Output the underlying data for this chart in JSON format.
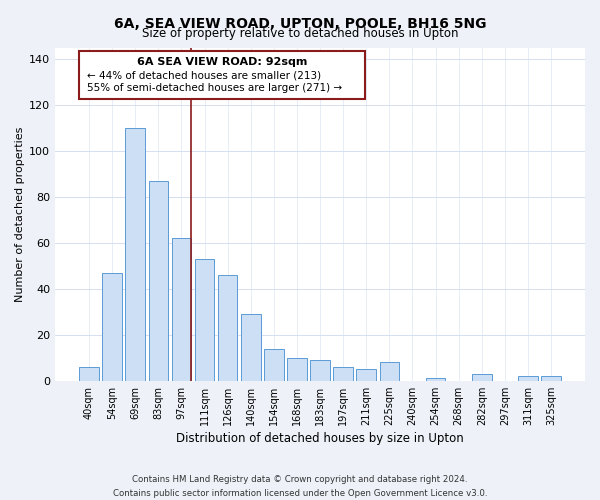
{
  "title": "6A, SEA VIEW ROAD, UPTON, POOLE, BH16 5NG",
  "subtitle": "Size of property relative to detached houses in Upton",
  "xlabel": "Distribution of detached houses by size in Upton",
  "ylabel": "Number of detached properties",
  "bar_labels": [
    "40sqm",
    "54sqm",
    "69sqm",
    "83sqm",
    "97sqm",
    "111sqm",
    "126sqm",
    "140sqm",
    "154sqm",
    "168sqm",
    "183sqm",
    "197sqm",
    "211sqm",
    "225sqm",
    "240sqm",
    "254sqm",
    "268sqm",
    "282sqm",
    "297sqm",
    "311sqm",
    "325sqm"
  ],
  "bar_values": [
    6,
    47,
    110,
    87,
    62,
    53,
    46,
    29,
    14,
    10,
    9,
    6,
    5,
    8,
    0,
    1,
    0,
    3,
    0,
    2,
    2
  ],
  "bar_color": "#ccdff5",
  "bar_edge_color": "#5b9bd5",
  "marker_index": 4,
  "marker_color": "#8b1a1a",
  "ylim": [
    0,
    145
  ],
  "yticks": [
    0,
    20,
    40,
    60,
    80,
    100,
    120,
    140
  ],
  "annotation_title": "6A SEA VIEW ROAD: 92sqm",
  "annotation_line1": "← 44% of detached houses are smaller (213)",
  "annotation_line2": "55% of semi-detached houses are larger (271) →",
  "footer_line1": "Contains HM Land Registry data © Crown copyright and database right 2024.",
  "footer_line2": "Contains public sector information licensed under the Open Government Licence v3.0.",
  "bg_color": "#eef2f8",
  "plot_bg_color": "#ffffff",
  "grid_color": "#d5dff0"
}
